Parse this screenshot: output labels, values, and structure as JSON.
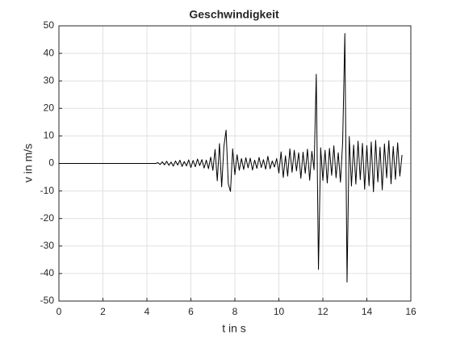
{
  "chart_data": {
    "type": "line",
    "title": "Geschwindigkeit",
    "x_label": "t in s",
    "y_label": "v in m/s",
    "x": [
      0,
      0.1,
      0.2,
      0.3,
      0.4,
      0.5,
      0.6,
      0.7,
      0.8,
      0.9,
      1,
      1.1,
      1.2,
      1.3,
      1.4,
      1.5,
      1.6,
      1.7,
      1.8,
      1.9,
      2,
      2.1,
      2.2,
      2.3,
      2.4,
      2.5,
      2.6,
      2.7,
      2.8,
      2.9,
      3,
      3.1,
      3.2,
      3.3,
      3.4,
      3.5,
      3.6,
      3.7,
      3.8,
      3.9,
      4,
      4.1,
      4.2,
      4.3,
      4.4,
      4.5,
      4.6,
      4.7,
      4.8,
      4.9,
      5,
      5.1,
      5.2,
      5.3,
      5.4,
      5.5,
      5.6,
      5.7,
      5.8,
      5.9,
      6,
      6.1,
      6.2,
      6.3,
      6.4,
      6.5,
      6.6,
      6.7,
      6.8,
      6.9,
      7,
      7.1,
      7.2,
      7.3,
      7.4,
      7.5,
      7.6,
      7.7,
      7.8,
      7.9,
      8,
      8.1,
      8.2,
      8.3,
      8.4,
      8.5,
      8.6,
      8.7,
      8.8,
      8.9,
      9,
      9.1,
      9.2,
      9.3,
      9.4,
      9.5,
      9.6,
      9.7,
      9.8,
      9.9,
      10,
      10.1,
      10.2,
      10.3,
      10.4,
      10.5,
      10.6,
      10.7,
      10.8,
      10.9,
      11,
      11.1,
      11.2,
      11.3,
      11.4,
      11.5,
      11.6,
      11.7,
      11.8,
      11.9,
      12,
      12.1,
      12.2,
      12.3,
      12.4,
      12.5,
      12.6,
      12.7,
      12.8,
      12.9,
      13,
      13.1,
      13.2,
      13.3,
      13.4,
      13.5,
      13.6,
      13.7,
      13.8,
      13.9,
      14,
      14.1,
      14.2,
      14.3,
      14.4,
      14.5,
      14.6,
      14.7,
      14.8,
      14.9,
      15,
      15.1,
      15.2,
      15.3,
      15.4,
      15.5,
      15.6
    ],
    "series": [
      {
        "color": "#000000",
        "values": [
          0,
          0,
          0,
          0,
          0,
          0,
          0,
          0,
          0,
          0,
          0,
          0,
          0,
          0,
          0,
          0,
          0,
          0,
          0,
          0,
          0,
          0,
          0,
          0,
          0,
          0,
          0,
          0,
          0,
          0,
          0,
          0,
          0,
          0,
          0,
          0,
          0,
          0,
          0,
          0,
          0,
          0,
          0,
          0,
          0,
          0.3,
          -0.4,
          0.6,
          -0.5,
          0.8,
          -0.7,
          0.5,
          -1,
          0.9,
          -0.6,
          1.2,
          -1.1,
          0.7,
          -0.9,
          1.3,
          -1.5,
          1.1,
          -1.2,
          1.6,
          -0.8,
          1.4,
          -1.7,
          1.2,
          -1.9,
          2.3,
          -2.5,
          5.1,
          -6.3,
          7.2,
          -8.5,
          6.1,
          12.1,
          -7.4,
          -10.2,
          5.3,
          -4.1,
          3.2,
          -2.5,
          1.8,
          -2.2,
          2.1,
          -1.6,
          1.9,
          -2.4,
          1.2,
          -1.8,
          2.2,
          -1.5,
          1.4,
          -2.1,
          2.6,
          -1.9,
          0.9,
          -1.3,
          1.8,
          -3.5,
          4.2,
          -5.1,
          2.8,
          -4.6,
          5.3,
          -3.2,
          4.8,
          -2.7,
          3.9,
          -5.4,
          4.1,
          -3.6,
          5.2,
          -6.1,
          4.4,
          -2.3,
          32.4,
          -38.5,
          5.7,
          -6.2,
          4.8,
          -7.1,
          5.5,
          -4.3,
          6.4,
          -5.2,
          3.9,
          -6.8,
          7.6,
          47.2,
          -43.1,
          9.8,
          -8.2,
          6.7,
          -7.5,
          8.1,
          -5.9,
          7.3,
          -9.4,
          6.5,
          -8.1,
          7.8,
          -10.3,
          8.4,
          -6.7,
          5.9,
          -9.6,
          7.1,
          -5.2,
          8.3,
          -7.4,
          6.2,
          -5.8,
          7.5,
          -4.6,
          3.1
        ]
      }
    ],
    "xlim": [
      0,
      16
    ],
    "ylim": [
      -50,
      50
    ],
    "xticks": [
      0,
      2,
      4,
      6,
      8,
      10,
      12,
      14,
      16
    ],
    "yticks": [
      -50,
      -40,
      -30,
      -20,
      -10,
      0,
      10,
      20,
      30,
      40,
      50
    ],
    "grid": true
  }
}
